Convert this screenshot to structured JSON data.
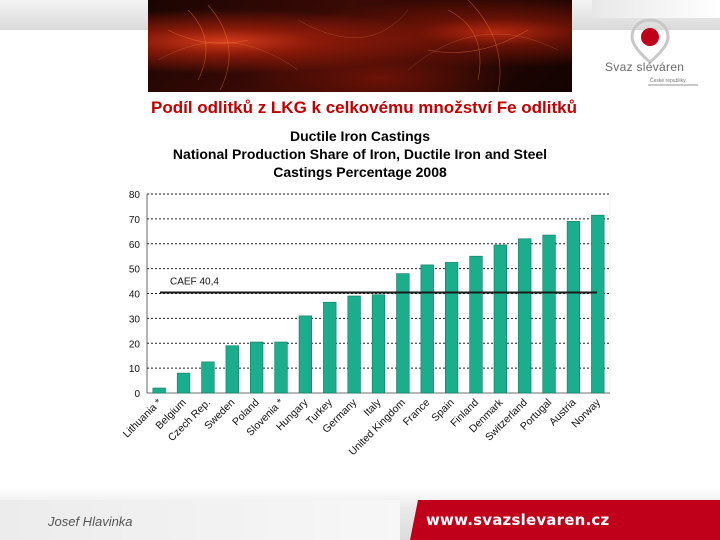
{
  "slide": {
    "title": "Podíl odlitků z LKG k celkovému množství Fe odlitků",
    "author": "Josef Hlavinka",
    "website": "www.svazslevaren.cz"
  },
  "logo": {
    "name": "Svaz sléváren",
    "subtitle": "České republiky",
    "colors": {
      "pin": "#c0001a",
      "text": "#6a6a6a"
    }
  },
  "colors": {
    "title": "#c00000",
    "bar": "#1aae8c",
    "bar_edge": "#0f7a60",
    "reference_line": "#1a1a1a",
    "url_bar": "#c0001a"
  },
  "chart_data": {
    "type": "bar",
    "title": "Ductile Iron Castings",
    "subtitle_lines": [
      "National Production Share of Iron, Ductile Iron and Steel",
      "Castings Percentage 2008"
    ],
    "xlabel": "",
    "ylabel": "",
    "ylim": [
      0,
      80
    ],
    "yticks": [
      0,
      10,
      20,
      30,
      40,
      50,
      60,
      70,
      80
    ],
    "grid": true,
    "categories": [
      "Lithuania *",
      "Belgium",
      "Czech Rep.",
      "Sweden",
      "Poland",
      "Slovenia *",
      "Hungary",
      "Turkey",
      "Germany",
      "Italy",
      "United Kingdom",
      "France",
      "Spain",
      "Finland",
      "Denmark",
      "Switzerland",
      "Portugal",
      "Austria",
      "Norway"
    ],
    "values": [
      2,
      8,
      12.5,
      19,
      20.5,
      20.5,
      31,
      36.5,
      39,
      39.5,
      48,
      51.5,
      52.5,
      55,
      59.5,
      62,
      63.5,
      69,
      71.5
    ],
    "reference_line": {
      "label": "CAEF 40,4",
      "value": 40.4
    }
  }
}
